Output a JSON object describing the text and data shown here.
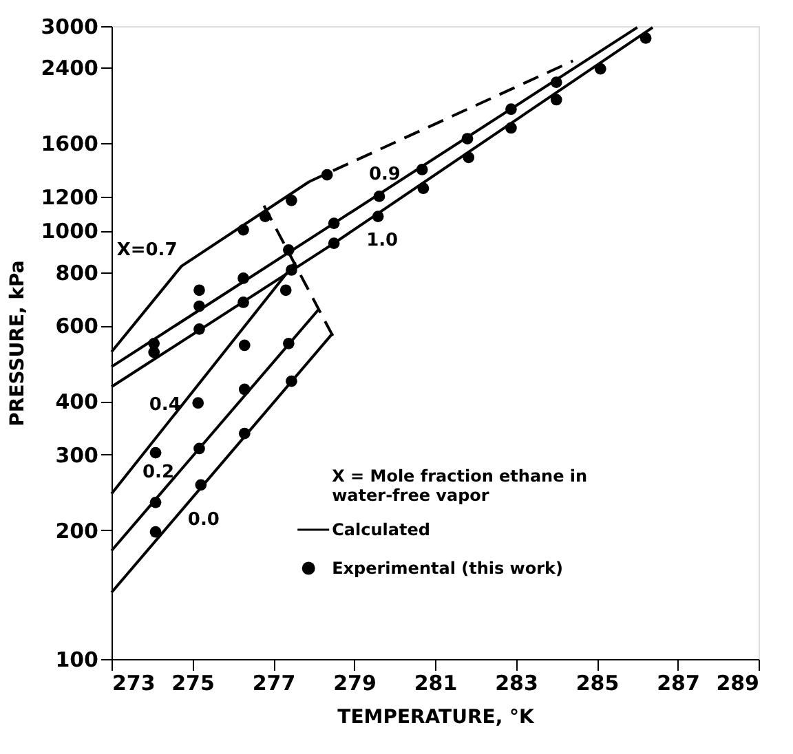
{
  "chart_data": {
    "type": "line",
    "xlabel": "TEMPERATURE, °K",
    "ylabel": "PRESSURE, kPa",
    "xlim": [
      273,
      289
    ],
    "xticks": [
      273,
      275,
      277,
      279,
      281,
      283,
      285,
      287,
      289
    ],
    "ylim": [
      100,
      3000
    ],
    "yticks": [
      100,
      200,
      300,
      400,
      600,
      800,
      1000,
      1200,
      1600,
      2400,
      3000
    ],
    "log": "y",
    "grid": false,
    "legend": "bottom right",
    "series": [
      {
        "name": "Calculated",
        "color": "#000000",
        "line_style": "solid",
        "x": [
          273.0,
          274.73,
          277.89
        ],
        "values": [
          521,
          826,
          1301
        ]
      },
      {
        "color": "#000000",
        "line_style": "dashed",
        "x": [
          277.89,
          284.41
        ],
        "values": [
          1301,
          2489
        ]
      },
      {
        "color": "#000000",
        "line_style": "solid",
        "x": [
          273.0,
          278.5,
          286.0
        ],
        "values": [
          481,
          1040,
          2980
        ]
      },
      {
        "color": "#000000",
        "line_style": "solid",
        "x": [
          273.0,
          278.5,
          286.38
        ],
        "values": [
          432,
          934,
          2980
        ]
      },
      {
        "color": "#000000",
        "line_style": "solid",
        "x": [
          273.0,
          277.55
        ],
        "values": [
          243,
          844
        ]
      },
      {
        "color": "#000000",
        "line_style": "solid",
        "x": [
          273.0,
          278.13
        ],
        "values": [
          179,
          656
        ]
      },
      {
        "color": "#000000",
        "line_style": "solid",
        "x": [
          273.0,
          278.47
        ],
        "values": [
          143,
          576
        ]
      },
      {
        "color": "#000000",
        "line_style": "dashed",
        "x": [
          276.77,
          278.47
        ],
        "values": [
          1143,
          568
        ]
      },
      {
        "name": "Experimental (this work)",
        "type": "scatter",
        "color": "#000000",
        "marker": "circle",
        "x": [
          274.05,
          274.05,
          275.17,
          276.26,
          276.8,
          277.45,
          278.33,
          275.17,
          276.26,
          277.38,
          278.5,
          279.62,
          280.68,
          281.8,
          282.88,
          284.0,
          275.17,
          276.26,
          277.45,
          278.5,
          279.59,
          280.71,
          281.83,
          282.88,
          284.0,
          285.09,
          286.21,
          274.09,
          275.14,
          276.29,
          277.31,
          274.09,
          275.17,
          276.29,
          277.38,
          274.09,
          275.21,
          276.29,
          277.45
        ],
        "values": [
          545,
          520,
          726,
          1004,
          1079,
          1176,
          1349,
          666,
          774,
          901,
          1040,
          1202,
          1388,
          1639,
          1920,
          2218,
          589,
          680,
          809,
          934,
          1079,
          1255,
          1481,
          1736,
          2020,
          2384,
          2813,
          303,
          396,
          540,
          726,
          232,
          310,
          426,
          545,
          198,
          255,
          336,
          445
        ]
      }
    ],
    "annotations": [
      {
        "text": "X=0.7",
        "x": 274.73,
        "y": 826
      },
      {
        "text": "0.9",
        "x": 279.62,
        "y": 1202
      },
      {
        "text": "1.0",
        "x": 279.59,
        "y": 1079
      },
      {
        "text": "0.4",
        "x": 275.14,
        "y": 396
      },
      {
        "text": "0.2",
        "x": 274.09,
        "y": 232
      },
      {
        "text": "0.0",
        "x": 275.21,
        "y": 255
      },
      "X = Mole fraction ethane in\n      water-free vapor"
    ]
  }
}
